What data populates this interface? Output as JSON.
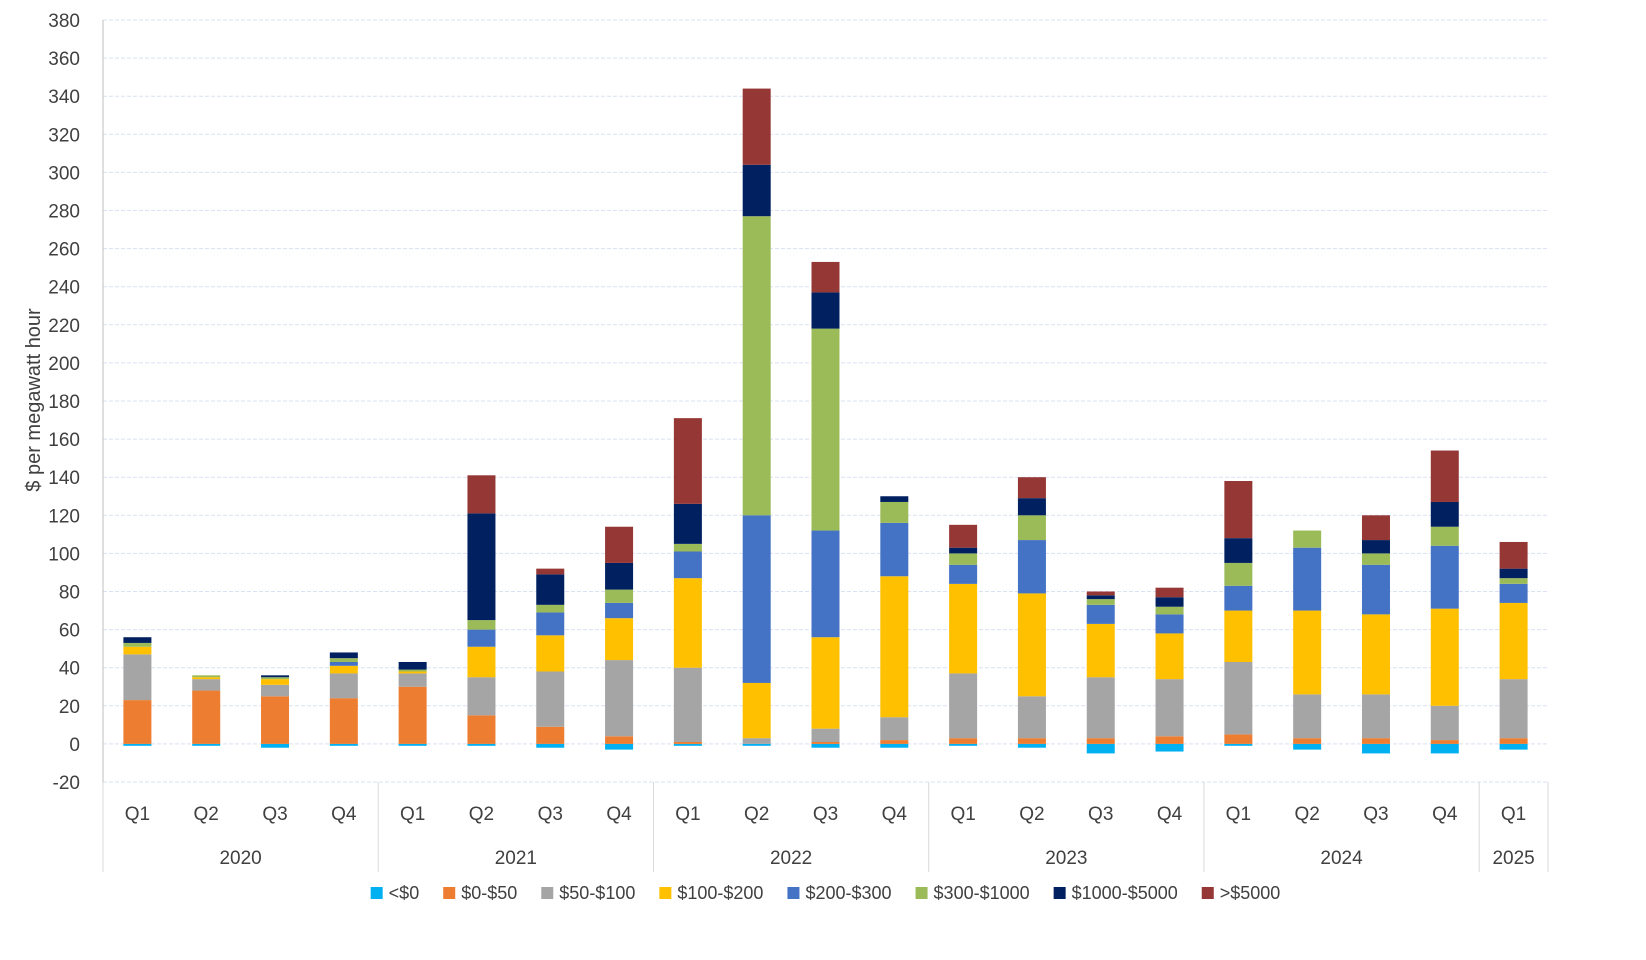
{
  "chart_data": {
    "type": "bar",
    "stacked": true,
    "ylabel": "$ per megawatt hour",
    "ylim": [
      -20,
      380
    ],
    "ytick_step": 20,
    "grid": true,
    "legend_placement": "bottom",
    "quarters": [
      "Q1",
      "Q2",
      "Q3",
      "Q4",
      "Q1",
      "Q2",
      "Q3",
      "Q4",
      "Q1",
      "Q2",
      "Q3",
      "Q4",
      "Q1",
      "Q2",
      "Q3",
      "Q4",
      "Q1",
      "Q2",
      "Q3",
      "Q4",
      "Q1"
    ],
    "years": [
      {
        "label": "2020",
        "count": 4
      },
      {
        "label": "2021",
        "count": 4
      },
      {
        "label": "2022",
        "count": 4
      },
      {
        "label": "2023",
        "count": 4
      },
      {
        "label": "2024",
        "count": 4
      },
      {
        "label": "2025",
        "count": 1
      }
    ],
    "series": [
      {
        "name": "<$0",
        "color": "#00B0F0",
        "values": [
          -1,
          -1,
          -2,
          -1,
          -1,
          -1,
          -2,
          -3,
          -1,
          -1,
          -2,
          -2,
          -1,
          -2,
          -5,
          -4,
          -1,
          -3,
          -5,
          -5,
          -3
        ]
      },
      {
        "name": "$0-$50",
        "color": "#ED7D31",
        "values": [
          23,
          28,
          25,
          24,
          30,
          15,
          9,
          4,
          1,
          0,
          1,
          2,
          3,
          3,
          3,
          4,
          5,
          3,
          3,
          2,
          3
        ]
      },
      {
        "name": "$50-$100",
        "color": "#A5A5A5",
        "values": [
          24,
          6,
          6,
          13,
          7,
          20,
          29,
          40,
          39,
          3,
          7,
          12,
          34,
          22,
          32,
          30,
          38,
          23,
          23,
          18,
          31
        ]
      },
      {
        "name": "$100-$200",
        "color": "#FFC000",
        "values": [
          4,
          1,
          3,
          4,
          1,
          16,
          19,
          22,
          47,
          29,
          48,
          74,
          47,
          54,
          28,
          24,
          27,
          44,
          42,
          51,
          40
        ]
      },
      {
        "name": "$200-$300",
        "color": "#4472C4",
        "values": [
          0,
          0,
          0,
          2,
          0,
          9,
          12,
          8,
          14,
          88,
          56,
          28,
          10,
          28,
          10,
          10,
          13,
          33,
          26,
          33,
          10
        ]
      },
      {
        "name": "$300-$1000",
        "color": "#9BBB59",
        "values": [
          2,
          1,
          1,
          2,
          1,
          5,
          4,
          7,
          4,
          157,
          106,
          11,
          6,
          13,
          3,
          4,
          12,
          9,
          6,
          10,
          3
        ]
      },
      {
        "name": "$1000-$5000",
        "color": "#002060",
        "values": [
          3,
          0,
          1,
          3,
          4,
          56,
          16,
          14,
          21,
          27,
          19,
          3,
          3,
          9,
          2,
          5,
          13,
          0,
          7,
          13,
          5
        ]
      },
      {
        "name": ">$5000",
        "color": "#953735",
        "values": [
          0,
          0,
          0,
          0,
          0,
          20,
          3,
          19,
          45,
          40,
          16,
          0,
          12,
          11,
          2,
          5,
          30,
          0,
          13,
          27,
          14
        ]
      }
    ]
  }
}
